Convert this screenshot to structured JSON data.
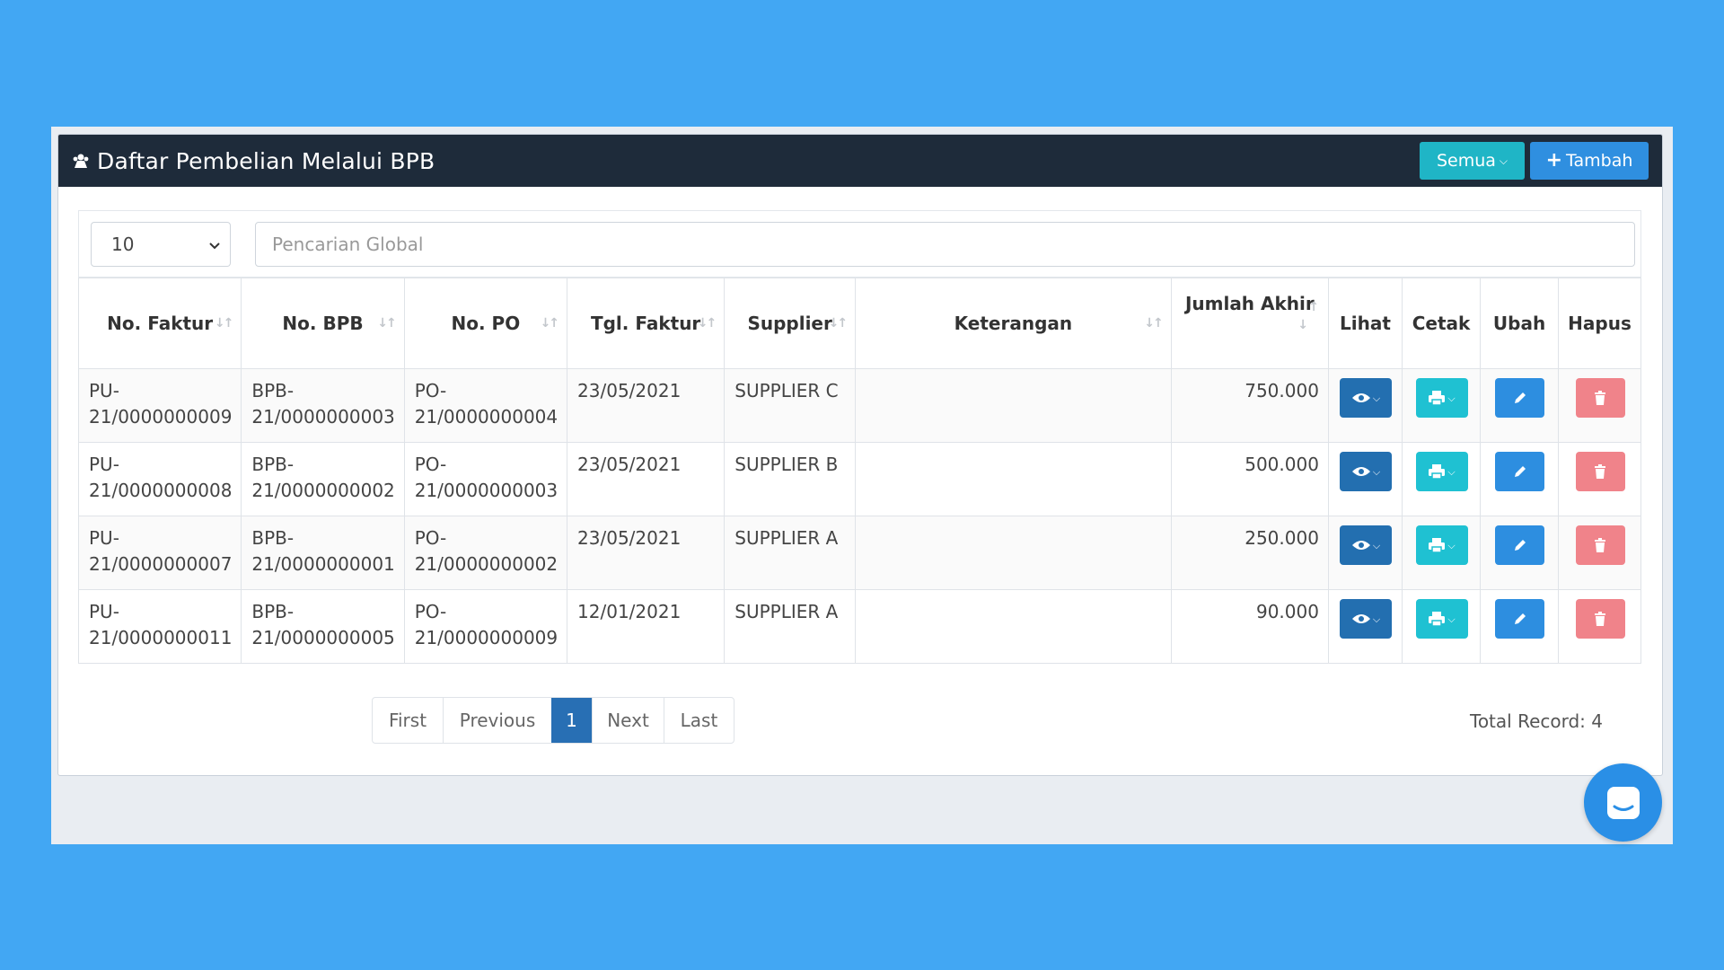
{
  "header": {
    "title": "Daftar Pembelian Melalui BPB",
    "filter_label": "Semua",
    "add_label": "Tambah"
  },
  "controls": {
    "page_size": "10",
    "search_placeholder": "Pencarian Global"
  },
  "table": {
    "columns": [
      "No. Faktur",
      "No. BPB",
      "No. PO",
      "Tgl. Faktur",
      "Supplier",
      "Keterangan",
      "Jumlah Akhir",
      "Lihat",
      "Cetak",
      "Ubah",
      "Hapus"
    ],
    "rows": [
      {
        "no_faktur_1": "PU-",
        "no_faktur_2": "21/0000000009",
        "no_bpb_1": "BPB-",
        "no_bpb_2": "21/0000000003",
        "no_po_1": "PO-",
        "no_po_2": "21/0000000004",
        "tgl": "23/05/2021",
        "supplier": "SUPPLIER C",
        "keterangan": "",
        "jumlah": "750.000"
      },
      {
        "no_faktur_1": "PU-",
        "no_faktur_2": "21/0000000008",
        "no_bpb_1": "BPB-",
        "no_bpb_2": "21/0000000002",
        "no_po_1": "PO-",
        "no_po_2": "21/0000000003",
        "tgl": "23/05/2021",
        "supplier": "SUPPLIER B",
        "keterangan": "",
        "jumlah": "500.000"
      },
      {
        "no_faktur_1": "PU-",
        "no_faktur_2": "21/0000000007",
        "no_bpb_1": "BPB-",
        "no_bpb_2": "21/0000000001",
        "no_po_1": "PO-",
        "no_po_2": "21/0000000002",
        "tgl": "23/05/2021",
        "supplier": "SUPPLIER A",
        "keterangan": "",
        "jumlah": "250.000"
      },
      {
        "no_faktur_1": "PU-",
        "no_faktur_2": "21/0000000011",
        "no_bpb_1": "BPB-",
        "no_bpb_2": "21/0000000005",
        "no_po_1": "PO-",
        "no_po_2": "21/0000000009",
        "tgl": "12/01/2021",
        "supplier": "SUPPLIER A",
        "keterangan": "",
        "jumlah": "90.000"
      }
    ]
  },
  "pagination": {
    "first": "First",
    "previous": "Previous",
    "current": "1",
    "next": "Next",
    "last": "Last"
  },
  "footer": {
    "total_record": "Total Record: 4"
  },
  "icons": {
    "title": "user-group-icon",
    "lihat": "eye-icon",
    "cetak": "print-icon",
    "ubah": "pencil-icon",
    "hapus": "trash-icon",
    "chat": "chat-icon"
  },
  "colors": {
    "background": "#42a7f3",
    "header_bar": "#1e2b3a",
    "semua": "#1fb5c6",
    "tambah": "#2f8fe0",
    "lihat": "#236fb0",
    "cetak": "#1fc1d2",
    "ubah": "#2d8ee0",
    "hapus": "#f0838a",
    "link": "#3d8bd0"
  }
}
